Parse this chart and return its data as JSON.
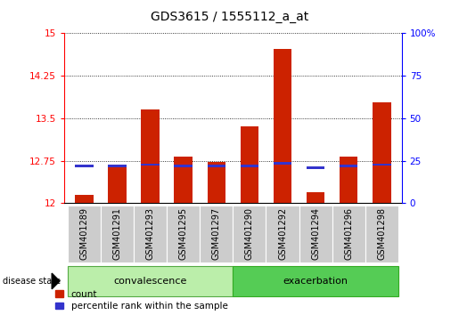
{
  "title": "GDS3615 / 1555112_a_at",
  "samples": [
    "GSM401289",
    "GSM401291",
    "GSM401293",
    "GSM401295",
    "GSM401297",
    "GSM401290",
    "GSM401292",
    "GSM401294",
    "GSM401296",
    "GSM401298"
  ],
  "count_values": [
    12.15,
    12.65,
    13.65,
    12.82,
    12.72,
    13.35,
    14.72,
    12.2,
    12.82,
    13.78
  ],
  "percentile_values": [
    12.65,
    12.65,
    12.68,
    12.65,
    12.65,
    12.65,
    12.7,
    12.63,
    12.65,
    12.68
  ],
  "ymin": 12.0,
  "ymax": 15.0,
  "yticks": [
    12.0,
    12.75,
    13.5,
    14.25,
    15.0
  ],
  "right_yticks": [
    0,
    25,
    50,
    75,
    100
  ],
  "bar_color": "#cc2200",
  "percentile_color": "#3333cc",
  "group_label": "disease state",
  "convalescence_label": "convalescence",
  "exacerbation_label": "exacerbation",
  "legend_count": "count",
  "legend_percentile": "percentile rank within the sample",
  "bar_width": 0.55,
  "group_bg_conv": "#bbeeaa",
  "group_bg_exac": "#55cc55",
  "tick_bg": "#cccccc",
  "title_fontsize": 10,
  "tick_fontsize": 7.5,
  "label_fontsize": 7,
  "group_fontsize": 8
}
